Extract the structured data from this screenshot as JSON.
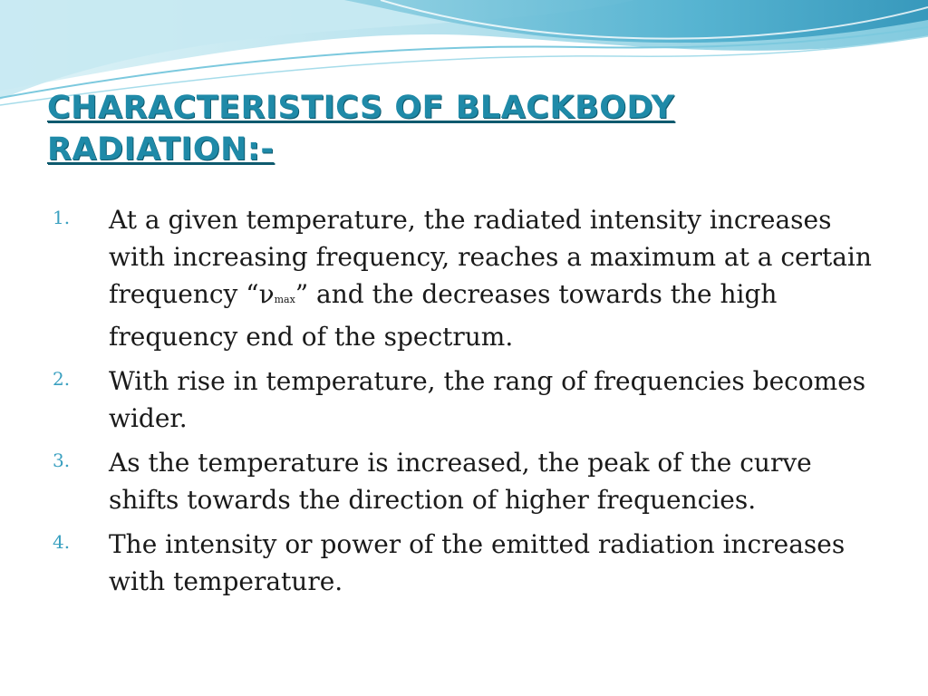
{
  "slide": {
    "title_line1": "Characteristics of Blackbody",
    "title_line2": "radiation:-",
    "accent_color": "#1f8aa8",
    "wave_colors": [
      "#bfe6f0",
      "#8fd0e2",
      "#5fb8d2",
      "#3a9fc0"
    ],
    "items": [
      {
        "number": "1.",
        "text_before": "At a given temperature, the radiated intensity increases with increasing frequency, reaches a maximum at a certain frequency “ν",
        "subscript": "max",
        "text_after": "” and the decreases towards the high frequency end of the spectrum."
      },
      {
        "number": "2.",
        "text": "With rise in temperature, the rang of frequencies becomes wider."
      },
      {
        "number": "3.",
        "text": "As the temperature is increased, the peak of the curve shifts towards the direction of higher frequencies."
      },
      {
        "number": "4.",
        "text": "The intensity  or power of the emitted radiation increases with temperature."
      }
    ]
  }
}
